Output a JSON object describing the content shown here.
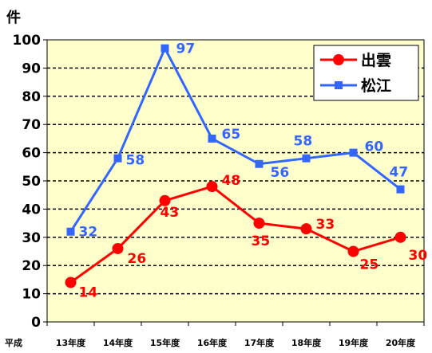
{
  "chart_data": {
    "type": "line",
    "unit_label": "件",
    "x_prefix_label": "平成",
    "categories": [
      "13年度",
      "14年度",
      "15年度",
      "16年度",
      "17年度",
      "18年度",
      "19年度",
      "20年度"
    ],
    "ylim": [
      0,
      100
    ],
    "yticks": [
      0,
      10,
      20,
      30,
      40,
      50,
      60,
      70,
      80,
      90,
      100
    ],
    "grid": true,
    "legend_position": "top-right",
    "series": [
      {
        "name": "出雲",
        "values": [
          14,
          26,
          43,
          48,
          35,
          33,
          25,
          30
        ],
        "color": "#ff0000",
        "marker": "circle"
      },
      {
        "name": "松江",
        "values": [
          32,
          58,
          97,
          65,
          56,
          58,
          60,
          47
        ],
        "color": "#3366ff",
        "marker": "square"
      }
    ],
    "plot_background": "#ffffcc"
  }
}
